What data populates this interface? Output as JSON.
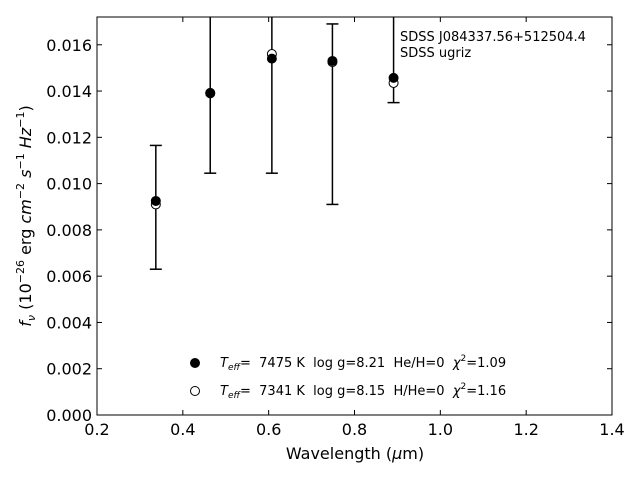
{
  "chart_data": {
    "type": "scatter",
    "xlabel": "Wavelength (μm)",
    "ylabel": "f_ν (10^-26 erg cm^-2 s^-1 Hz^-1)",
    "xlim": [
      0.2,
      1.4
    ],
    "ylim": [
      0.0,
      0.0172
    ],
    "x_ticks": [
      "0.2",
      "0.4",
      "0.6",
      "0.8",
      "1.0",
      "1.2",
      "1.4"
    ],
    "y_ticks": [
      "0.000",
      "0.002",
      "0.004",
      "0.006",
      "0.008",
      "0.010",
      "0.012",
      "0.014",
      "0.016"
    ],
    "annotations": [
      "SDSS J084337.56+512504.4",
      "SDSS ugriz"
    ],
    "observed": {
      "x": [
        0.3557,
        0.4825,
        0.6261,
        0.7672,
        0.9097
      ],
      "y_low": [
        0.0063,
        0.01045,
        0.01045,
        0.0091,
        0.0135
      ],
      "y_high": [
        0.01165,
        0.0172,
        0.0172,
        0.0169,
        0.0172
      ]
    },
    "series": [
      {
        "name": "T_eff= 7475 K log g=8.21 He/H=0 χ²=1.09",
        "marker": "filled-circle",
        "x": [
          0.3557,
          0.4825,
          0.6261,
          0.7672,
          0.9097
        ],
        "y": [
          0.00925,
          0.0139,
          0.0154,
          0.0153,
          0.01457
        ]
      },
      {
        "name": "T_eff= 7341 K log g=8.15 H/He=0 χ²=1.16",
        "marker": "open-circle",
        "x": [
          0.3557,
          0.4825,
          0.6261,
          0.7672,
          0.9097
        ],
        "y": [
          0.0091,
          0.01392,
          0.0156,
          0.01525,
          0.01435
        ]
      }
    ],
    "legend": {
      "placement": "lower-center",
      "entries": [
        {
          "teff_label": "T",
          "teff_sub": "eff",
          "rest": "=  7475 K  log g=8.21  He/H=0  ",
          "chi": "χ",
          "chi_sup": "2",
          "chi_rest": "=1.09"
        },
        {
          "teff_label": "T",
          "teff_sub": "eff",
          "rest": "=  7341 K  log g=8.15  H/He=0  ",
          "chi": "χ",
          "chi_sup": "2",
          "chi_rest": "=1.16"
        }
      ]
    },
    "grid": false
  }
}
